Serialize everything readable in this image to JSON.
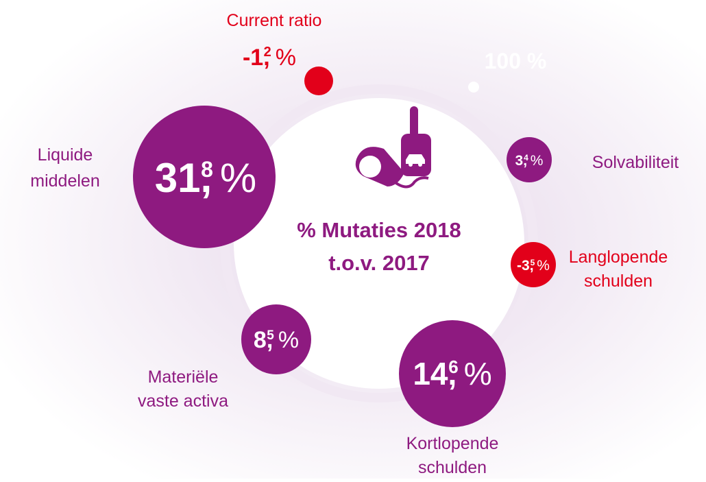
{
  "center_title": [
    "% Mutaties 2018",
    "t.o.v. 2017"
  ],
  "marker": "100 %",
  "items": [
    {
      "label": [
        "Current ratio"
      ],
      "whole": "-1,",
      "decimal": "2",
      "unit": "%"
    },
    {
      "label": [
        "Solvabiliteit"
      ],
      "whole": "3,",
      "decimal": "4",
      "unit": "%"
    },
    {
      "label": [
        "Langlopende",
        "schulden"
      ],
      "whole": "-3,",
      "decimal": "5",
      "unit": "%"
    },
    {
      "label": [
        "Kortlopende",
        "schulden"
      ],
      "whole": "14,",
      "decimal": "6",
      "unit": "%"
    },
    {
      "label": [
        "Materiële",
        "vaste activa"
      ],
      "whole": "8,",
      "decimal": "5",
      "unit": "%"
    },
    {
      "label": [
        "Liquide",
        "middelen"
      ],
      "whole": "31,",
      "decimal": "8",
      "unit": "%"
    }
  ]
}
